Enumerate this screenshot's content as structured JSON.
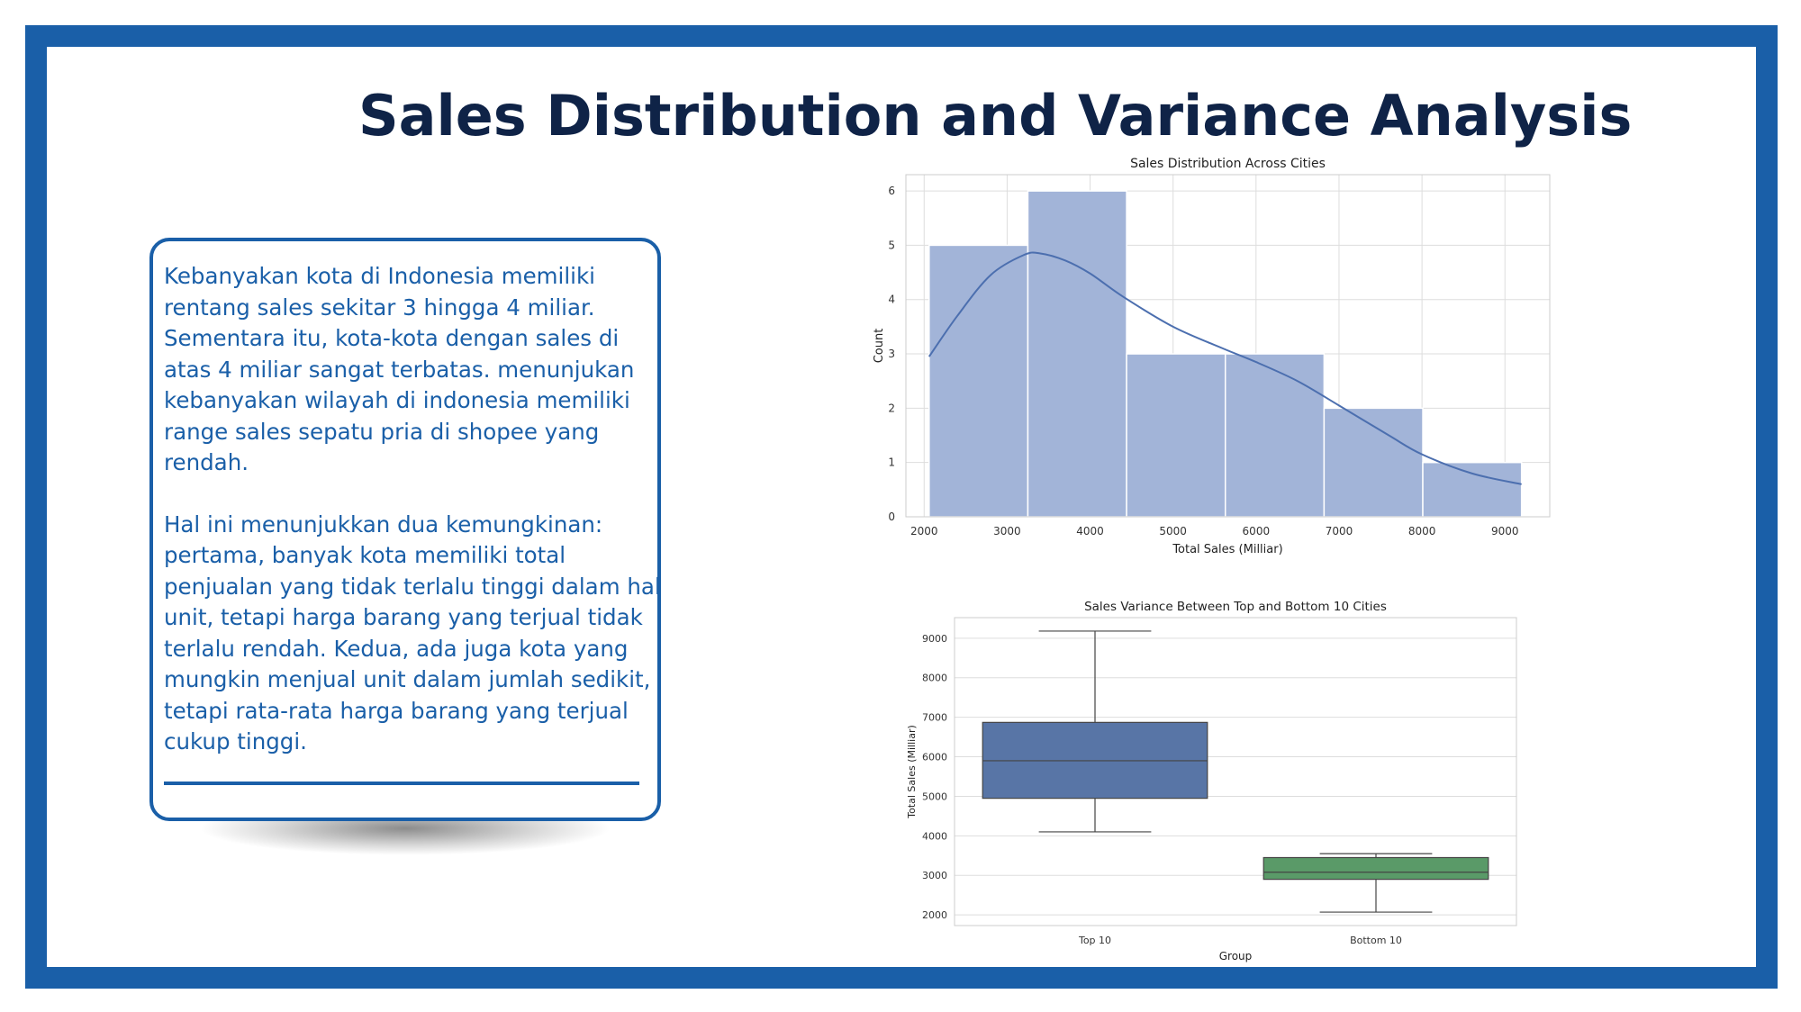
{
  "slide_title": "Sales Distribution and Variance Analysis",
  "card": {
    "paragraph1": "Kebanyakan kota di Indonesia memiliki rentang sales sekitar 3 hingga 4 miliar. Sementara itu, kota-kota dengan sales di atas 4 miliar sangat terbatas. menunjukan kebanyakan wilayah di indonesia memiliki range sales sepatu pria di shopee yang rendah.",
    "paragraph2": "Hal ini menunjukkan dua kemungkinan: pertama, banyak kota memiliki total penjualan yang tidak terlalu tinggi dalam hal unit, tetapi harga barang yang terjual tidak terlalu rendah. Kedua, ada juga kota yang mungkin menjual unit dalam jumlah sedikit, tetapi rata-rata harga barang yang terjual cukup tinggi."
  },
  "colors": {
    "frame": "#1a5fa8",
    "title": "#0f2347",
    "hist_bar": "#a2b4d8",
    "kde_line": "#4c6faf",
    "box_top": "#5875a6",
    "box_bottom": "#5a9a68"
  },
  "chart_data": [
    {
      "type": "bar",
      "subtype": "histogram",
      "title": "Sales Distribution Across Cities",
      "xlabel": "Total Sales (Milliar)",
      "ylabel": "Count",
      "bin_edges": [
        2060,
        3250,
        4440,
        5630,
        6820,
        8010,
        9200
      ],
      "values": [
        5,
        6,
        3,
        3,
        2,
        1
      ],
      "kde": {
        "x": [
          2060,
          2400,
          2800,
          3200,
          3400,
          3700,
          4000,
          4400,
          5000,
          5600,
          6000,
          6500,
          7000,
          7600,
          8000,
          8600,
          9200
        ],
        "y": [
          2.95,
          3.7,
          4.45,
          4.82,
          4.85,
          4.72,
          4.48,
          4.05,
          3.5,
          3.1,
          2.85,
          2.5,
          2.05,
          1.5,
          1.15,
          0.8,
          0.6
        ]
      },
      "xticks": [
        2000,
        3000,
        4000,
        5000,
        6000,
        7000,
        8000,
        9000
      ],
      "yticks": [
        0,
        1,
        2,
        3,
        4,
        5,
        6
      ],
      "xlim": [
        1780,
        9540
      ],
      "ylim": [
        0,
        6.3
      ],
      "grid": true
    },
    {
      "type": "box",
      "title": "Sales Variance Between Top and Bottom 10 Cities",
      "xlabel": "Group",
      "ylabel": "Total Sales (Milliar)",
      "categories": [
        "Top 10",
        "Bottom 10"
      ],
      "boxes": [
        {
          "label": "Top 10",
          "min": 4100,
          "q1": 4950,
          "median": 5900,
          "q3": 6870,
          "max": 9180
        },
        {
          "label": "Bottom 10",
          "min": 2070,
          "q1": 2900,
          "median": 3080,
          "q3": 3450,
          "max": 3550
        }
      ],
      "yticks": [
        2000,
        3000,
        4000,
        5000,
        6000,
        7000,
        8000,
        9000
      ],
      "ylim": [
        1730,
        9520
      ],
      "grid": true
    }
  ]
}
